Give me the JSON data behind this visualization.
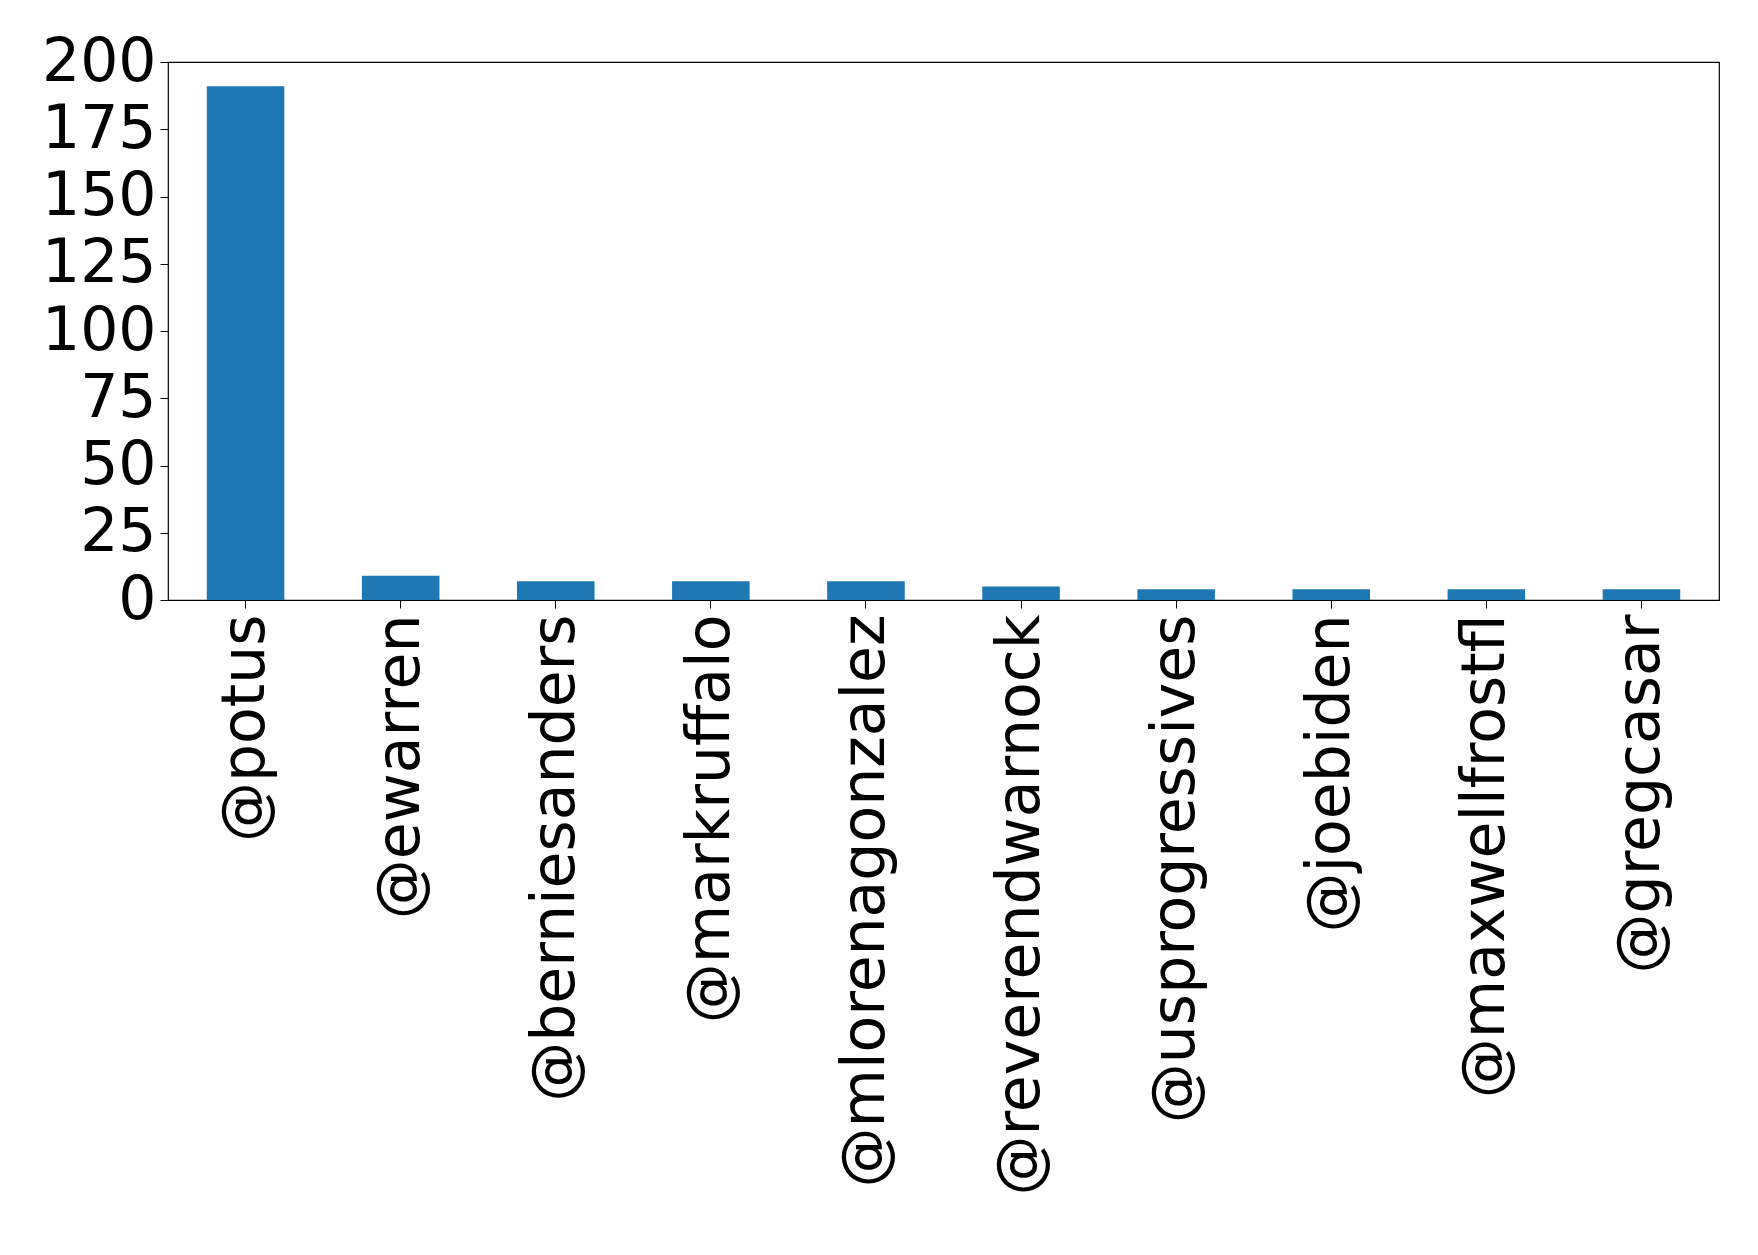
{
  "chart_data": {
    "type": "bar",
    "categories": [
      "@potus",
      "@ewarren",
      "@berniesanders",
      "@markruffalo",
      "@mlorenagonzalez",
      "@reverendwarnock",
      "@usprogressives",
      "@joebiden",
      "@maxwellfrostfl",
      "@gregcasar"
    ],
    "values": [
      191,
      9,
      7,
      7,
      7,
      5,
      4,
      4,
      4,
      4
    ],
    "color": "#1f77b4",
    "ylim": [
      0,
      200
    ],
    "yticks": [
      0,
      25,
      50,
      75,
      100,
      125,
      150,
      175,
      200
    ],
    "grid": false
  }
}
